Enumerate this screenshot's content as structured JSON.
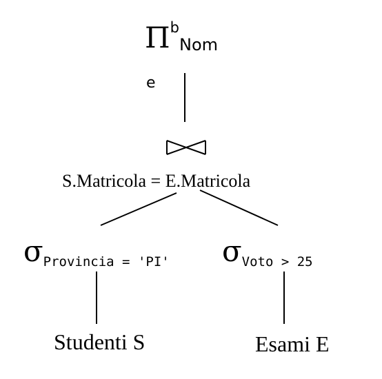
{
  "projection": {
    "symbol": "Π",
    "superscript": "b",
    "attribute": "Nom",
    "annotation": "e"
  },
  "join": {
    "symbol": "⋈",
    "condition": "S.Matricola = E.Matricola"
  },
  "selections": [
    {
      "symbol": "σ",
      "condition": "Provincia = 'PI'"
    },
    {
      "symbol": "σ",
      "condition": "Voto > 25"
    }
  ],
  "relations": [
    {
      "label": "Studenti S"
    },
    {
      "label": "Esami E"
    }
  ],
  "colors": {
    "stroke": "#000000",
    "background": "#ffffff"
  }
}
